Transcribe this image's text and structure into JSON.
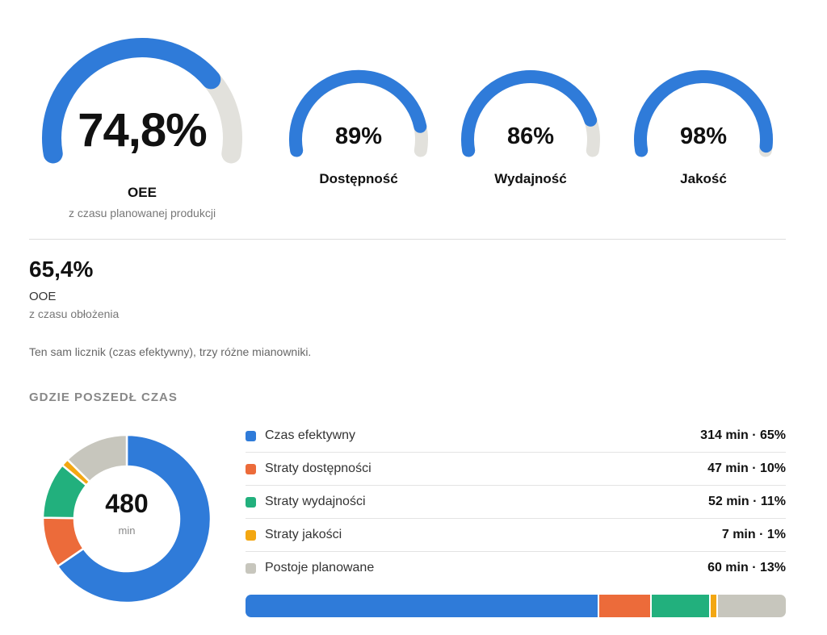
{
  "colors": {
    "blue": "#2f7bd9",
    "track": "#e2e1dc",
    "orange": "#ec6b3a",
    "green": "#22b07d",
    "yellow": "#f3a712",
    "gray": "#c7c6bd"
  },
  "gauges": {
    "main": {
      "value_text": "74,8%",
      "fraction": 0.748,
      "label": "OEE",
      "sub": "z czasu planowanej produkcji"
    },
    "availability": {
      "value_text": "89%",
      "fraction": 0.89,
      "label": "Dostępność"
    },
    "performance": {
      "value_text": "86%",
      "fraction": 0.86,
      "label": "Wydajność"
    },
    "quality": {
      "value_text": "98%",
      "fraction": 0.98,
      "label": "Jakość"
    }
  },
  "ooe": {
    "value_text": "65,4%",
    "label": "OOE",
    "sub": "z czasu obłożenia"
  },
  "note": "Ten sam licznik (czas efektywny), trzy różne mianowniki.",
  "section_title": "GDZIE POSZEDŁ CZAS",
  "donut": {
    "total_text": "480",
    "unit": "min"
  },
  "breakdown": [
    {
      "label": "Czas efektywny",
      "value_text": "314 min · 65%",
      "minutes": 314,
      "color": "#2f7bd9"
    },
    {
      "label": "Straty dostępności",
      "value_text": "47 min · 10%",
      "minutes": 47,
      "color": "#ec6b3a"
    },
    {
      "label": "Straty wydajności",
      "value_text": "52 min · 11%",
      "minutes": 52,
      "color": "#22b07d"
    },
    {
      "label": "Straty jakości",
      "value_text": "7 min · 1%",
      "minutes": 7,
      "color": "#f3a712"
    },
    {
      "label": "Postoje planowane",
      "value_text": "60 min · 13%",
      "minutes": 60,
      "color": "#c7c6bd"
    }
  ]
}
